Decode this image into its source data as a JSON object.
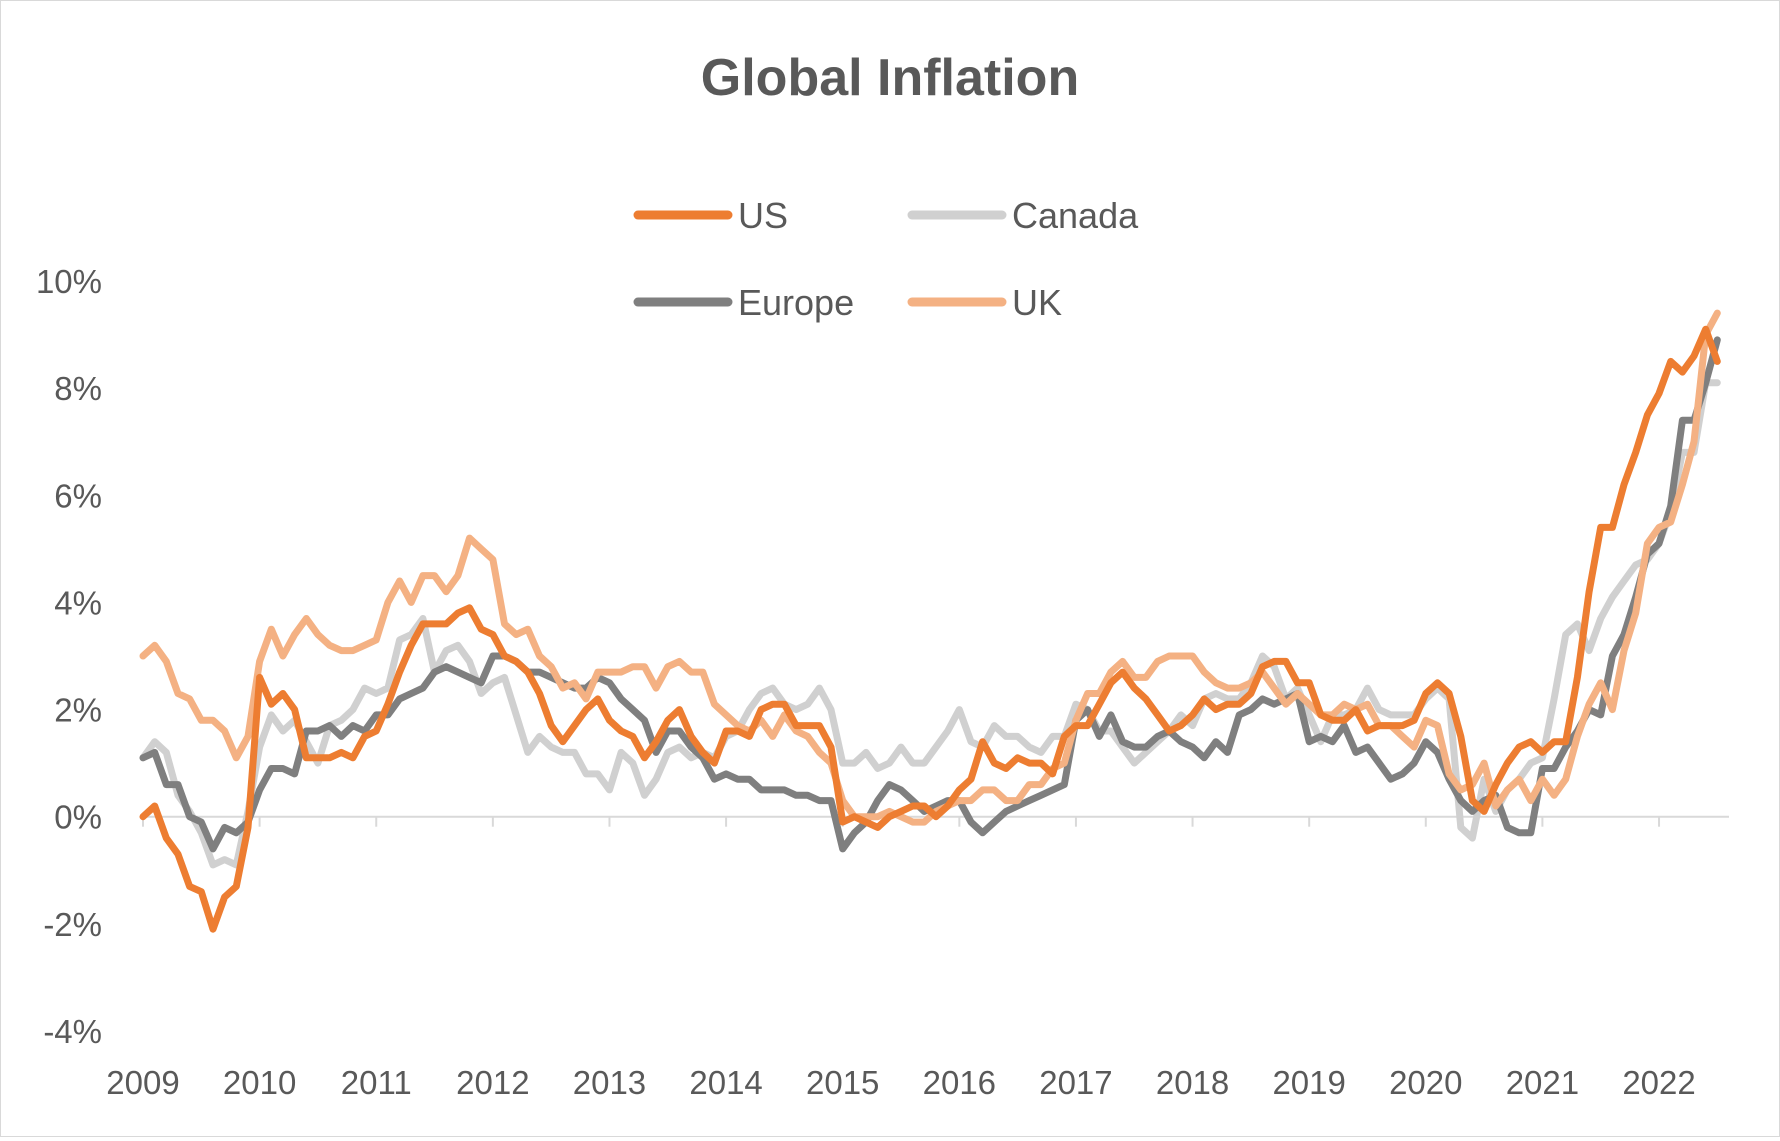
{
  "chart_data": {
    "type": "line",
    "title": "Global Inflation",
    "xlabel": "",
    "ylabel": "",
    "x_ticks": [
      "2009",
      "2010",
      "2011",
      "2012",
      "2013",
      "2014",
      "2015",
      "2016",
      "2017",
      "2018",
      "2019",
      "2020",
      "2021",
      "2022"
    ],
    "xlim": [
      2009.0,
      2022.6
    ],
    "ylim": [
      -4,
      10
    ],
    "y_ticks": [
      -4,
      -2,
      0,
      2,
      4,
      6,
      8,
      10
    ],
    "y_tick_labels": [
      "-4%",
      "-2%",
      "0%",
      "2%",
      "4%",
      "6%",
      "8%",
      "10%"
    ],
    "grid": false,
    "legend_position": "top-center",
    "series": [
      {
        "name": "Canada",
        "color": "#d0d0d0",
        "x": [
          2009.0,
          2009.1,
          2009.2,
          2009.3,
          2009.4,
          2009.5,
          2009.6,
          2009.7,
          2009.8,
          2009.9,
          2010.0,
          2010.1,
          2010.2,
          2010.3,
          2010.4,
          2010.5,
          2010.6,
          2010.7,
          2010.8,
          2010.9,
          2011.0,
          2011.1,
          2011.2,
          2011.3,
          2011.4,
          2011.5,
          2011.6,
          2011.7,
          2011.8,
          2011.9,
          2012.0,
          2012.1,
          2012.2,
          2012.3,
          2012.4,
          2012.5,
          2012.6,
          2012.7,
          2012.8,
          2012.9,
          2013.0,
          2013.1,
          2013.2,
          2013.3,
          2013.4,
          2013.5,
          2013.6,
          2013.7,
          2013.8,
          2013.9,
          2014.0,
          2014.1,
          2014.2,
          2014.3,
          2014.4,
          2014.5,
          2014.6,
          2014.7,
          2014.8,
          2014.9,
          2015.0,
          2015.1,
          2015.2,
          2015.3,
          2015.4,
          2015.5,
          2015.6,
          2015.7,
          2015.8,
          2015.9,
          2016.0,
          2016.1,
          2016.2,
          2016.3,
          2016.4,
          2016.5,
          2016.6,
          2016.7,
          2016.8,
          2016.9,
          2017.0,
          2017.1,
          2017.2,
          2017.3,
          2017.4,
          2017.5,
          2017.6,
          2017.7,
          2017.8,
          2017.9,
          2018.0,
          2018.1,
          2018.2,
          2018.3,
          2018.4,
          2018.5,
          2018.6,
          2018.7,
          2018.8,
          2018.9,
          2019.0,
          2019.1,
          2019.2,
          2019.3,
          2019.4,
          2019.5,
          2019.6,
          2019.7,
          2019.8,
          2019.9,
          2020.0,
          2020.1,
          2020.2,
          2020.3,
          2020.4,
          2020.5,
          2020.6,
          2020.7,
          2020.8,
          2020.9,
          2021.0,
          2021.1,
          2021.2,
          2021.3,
          2021.4,
          2021.5,
          2021.6,
          2021.7,
          2021.8,
          2021.9,
          2022.0,
          2022.1,
          2022.2,
          2022.3,
          2022.4,
          2022.5
        ],
        "values": [
          1.1,
          1.4,
          1.2,
          0.4,
          0.1,
          -0.3,
          -0.9,
          -0.8,
          -0.9,
          0.1,
          1.3,
          1.9,
          1.6,
          1.8,
          1.4,
          1.0,
          1.7,
          1.8,
          2.0,
          2.4,
          2.3,
          2.4,
          3.3,
          3.4,
          3.7,
          2.7,
          3.1,
          3.2,
          2.9,
          2.3,
          2.5,
          2.6,
          1.9,
          1.2,
          1.5,
          1.3,
          1.2,
          1.2,
          0.8,
          0.8,
          0.5,
          1.2,
          1.0,
          0.4,
          0.7,
          1.2,
          1.3,
          1.1,
          1.2,
          1.1,
          1.5,
          1.6,
          2.0,
          2.3,
          2.4,
          2.1,
          2.0,
          2.1,
          2.4,
          2.0,
          1.0,
          1.0,
          1.2,
          0.9,
          1.0,
          1.3,
          1.0,
          1.0,
          1.3,
          1.6,
          2.0,
          1.4,
          1.3,
          1.7,
          1.5,
          1.5,
          1.3,
          1.2,
          1.5,
          1.5,
          2.1,
          2.0,
          1.6,
          1.6,
          1.3,
          1.0,
          1.2,
          1.4,
          1.6,
          1.9,
          1.7,
          2.2,
          2.3,
          2.2,
          2.2,
          2.5,
          3.0,
          2.8,
          2.2,
          2.4,
          1.9,
          1.4,
          1.9,
          1.9,
          2.0,
          2.4,
          2.0,
          1.9,
          1.9,
          1.9,
          2.2,
          2.4,
          2.2,
          -0.2,
          -0.4,
          0.7,
          0.1,
          0.5,
          0.7,
          1.0,
          1.1,
          2.2,
          3.4,
          3.6,
          3.1,
          3.7,
          4.1,
          4.4,
          4.7,
          4.8,
          5.1,
          5.7,
          6.8,
          6.8,
          8.1,
          8.1
        ]
      },
      {
        "name": "Europe",
        "color": "#7f7f7f",
        "x": [
          2009.0,
          2009.1,
          2009.2,
          2009.3,
          2009.4,
          2009.5,
          2009.6,
          2009.7,
          2009.8,
          2009.9,
          2010.0,
          2010.1,
          2010.2,
          2010.3,
          2010.4,
          2010.5,
          2010.6,
          2010.7,
          2010.8,
          2010.9,
          2011.0,
          2011.1,
          2011.2,
          2011.3,
          2011.4,
          2011.5,
          2011.6,
          2011.7,
          2011.8,
          2011.9,
          2012.0,
          2012.1,
          2012.2,
          2012.3,
          2012.4,
          2012.5,
          2012.6,
          2012.7,
          2012.8,
          2012.9,
          2013.0,
          2013.1,
          2013.2,
          2013.3,
          2013.4,
          2013.5,
          2013.6,
          2013.7,
          2013.8,
          2013.9,
          2014.0,
          2014.1,
          2014.2,
          2014.3,
          2014.4,
          2014.5,
          2014.6,
          2014.7,
          2014.8,
          2014.9,
          2015.0,
          2015.1,
          2015.2,
          2015.3,
          2015.4,
          2015.5,
          2015.6,
          2015.7,
          2015.8,
          2015.9,
          2016.0,
          2016.1,
          2016.2,
          2016.3,
          2016.4,
          2016.5,
          2016.6,
          2016.7,
          2016.8,
          2016.9,
          2017.0,
          2017.1,
          2017.2,
          2017.3,
          2017.4,
          2017.5,
          2017.6,
          2017.7,
          2017.8,
          2017.9,
          2018.0,
          2018.1,
          2018.2,
          2018.3,
          2018.4,
          2018.5,
          2018.6,
          2018.7,
          2018.8,
          2018.9,
          2019.0,
          2019.1,
          2019.2,
          2019.3,
          2019.4,
          2019.5,
          2019.6,
          2019.7,
          2019.8,
          2019.9,
          2020.0,
          2020.1,
          2020.2,
          2020.3,
          2020.4,
          2020.5,
          2020.6,
          2020.7,
          2020.8,
          2020.9,
          2021.0,
          2021.1,
          2021.2,
          2021.3,
          2021.4,
          2021.5,
          2021.6,
          2021.7,
          2021.8,
          2021.9,
          2022.0,
          2022.1,
          2022.2,
          2022.3,
          2022.4,
          2022.5
        ],
        "values": [
          1.1,
          1.2,
          0.6,
          0.6,
          0.0,
          -0.1,
          -0.6,
          -0.2,
          -0.3,
          -0.1,
          0.5,
          0.9,
          0.9,
          0.8,
          1.6,
          1.6,
          1.7,
          1.5,
          1.7,
          1.6,
          1.9,
          1.9,
          2.2,
          2.3,
          2.4,
          2.7,
          2.8,
          2.7,
          2.6,
          2.5,
          3.0,
          3.0,
          2.9,
          2.7,
          2.7,
          2.6,
          2.5,
          2.4,
          2.4,
          2.6,
          2.5,
          2.2,
          2.0,
          1.8,
          1.2,
          1.6,
          1.6,
          1.3,
          1.1,
          0.7,
          0.8,
          0.7,
          0.7,
          0.5,
          0.5,
          0.5,
          0.4,
          0.4,
          0.3,
          0.3,
          -0.6,
          -0.3,
          -0.1,
          0.3,
          0.6,
          0.5,
          0.3,
          0.1,
          0.2,
          0.3,
          0.3,
          -0.1,
          -0.3,
          -0.1,
          0.1,
          0.2,
          0.3,
          0.4,
          0.5,
          0.6,
          1.8,
          2.0,
          1.5,
          1.9,
          1.4,
          1.3,
          1.3,
          1.5,
          1.6,
          1.4,
          1.3,
          1.1,
          1.4,
          1.2,
          1.9,
          2.0,
          2.2,
          2.1,
          2.2,
          2.3,
          1.4,
          1.5,
          1.4,
          1.7,
          1.2,
          1.3,
          1.0,
          0.7,
          0.8,
          1.0,
          1.4,
          1.2,
          0.7,
          0.3,
          0.1,
          0.3,
          0.4,
          -0.2,
          -0.3,
          -0.3,
          0.9,
          0.9,
          1.3,
          1.6,
          2.0,
          1.9,
          3.0,
          3.4,
          4.1,
          4.9,
          5.1,
          5.8,
          7.4,
          7.4,
          8.1,
          8.9
        ]
      },
      {
        "name": "UK",
        "color": "#f4b183",
        "x": [
          2009.0,
          2009.1,
          2009.2,
          2009.3,
          2009.4,
          2009.5,
          2009.6,
          2009.7,
          2009.8,
          2009.9,
          2010.0,
          2010.1,
          2010.2,
          2010.3,
          2010.4,
          2010.5,
          2010.6,
          2010.7,
          2010.8,
          2010.9,
          2011.0,
          2011.1,
          2011.2,
          2011.3,
          2011.4,
          2011.5,
          2011.6,
          2011.7,
          2011.8,
          2011.9,
          2012.0,
          2012.1,
          2012.2,
          2012.3,
          2012.4,
          2012.5,
          2012.6,
          2012.7,
          2012.8,
          2012.9,
          2013.0,
          2013.1,
          2013.2,
          2013.3,
          2013.4,
          2013.5,
          2013.6,
          2013.7,
          2013.8,
          2013.9,
          2014.0,
          2014.1,
          2014.2,
          2014.3,
          2014.4,
          2014.5,
          2014.6,
          2014.7,
          2014.8,
          2014.9,
          2015.0,
          2015.1,
          2015.2,
          2015.3,
          2015.4,
          2015.5,
          2015.6,
          2015.7,
          2015.8,
          2015.9,
          2016.0,
          2016.1,
          2016.2,
          2016.3,
          2016.4,
          2016.5,
          2016.6,
          2016.7,
          2016.8,
          2016.9,
          2017.0,
          2017.1,
          2017.2,
          2017.3,
          2017.4,
          2017.5,
          2017.6,
          2017.7,
          2017.8,
          2017.9,
          2018.0,
          2018.1,
          2018.2,
          2018.3,
          2018.4,
          2018.5,
          2018.6,
          2018.7,
          2018.8,
          2018.9,
          2019.0,
          2019.1,
          2019.2,
          2019.3,
          2019.4,
          2019.5,
          2019.6,
          2019.7,
          2019.8,
          2019.9,
          2020.0,
          2020.1,
          2020.2,
          2020.3,
          2020.4,
          2020.5,
          2020.6,
          2020.7,
          2020.8,
          2020.9,
          2021.0,
          2021.1,
          2021.2,
          2021.3,
          2021.4,
          2021.5,
          2021.6,
          2021.7,
          2021.8,
          2021.9,
          2022.0,
          2022.1,
          2022.2,
          2022.3,
          2022.4,
          2022.5
        ],
        "values": [
          3.0,
          3.2,
          2.9,
          2.3,
          2.2,
          1.8,
          1.8,
          1.6,
          1.1,
          1.5,
          2.9,
          3.5,
          3.0,
          3.4,
          3.7,
          3.4,
          3.2,
          3.1,
          3.1,
          3.2,
          3.3,
          4.0,
          4.4,
          4.0,
          4.5,
          4.5,
          4.2,
          4.5,
          5.2,
          5.0,
          4.8,
          3.6,
          3.4,
          3.5,
          3.0,
          2.8,
          2.4,
          2.5,
          2.2,
          2.7,
          2.7,
          2.7,
          2.8,
          2.8,
          2.4,
          2.8,
          2.9,
          2.7,
          2.7,
          2.1,
          1.9,
          1.7,
          1.6,
          1.8,
          1.5,
          1.9,
          1.6,
          1.5,
          1.2,
          1.0,
          0.3,
          0.0,
          0.0,
          0.0,
          0.1,
          0.0,
          -0.1,
          -0.1,
          0.1,
          0.2,
          0.3,
          0.3,
          0.5,
          0.5,
          0.3,
          0.3,
          0.6,
          0.6,
          0.9,
          1.0,
          1.8,
          2.3,
          2.3,
          2.7,
          2.9,
          2.6,
          2.6,
          2.9,
          3.0,
          3.0,
          3.0,
          2.7,
          2.5,
          2.4,
          2.4,
          2.5,
          2.7,
          2.4,
          2.1,
          2.3,
          2.1,
          1.9,
          1.9,
          2.1,
          2.0,
          2.1,
          1.7,
          1.7,
          1.5,
          1.3,
          1.8,
          1.7,
          0.8,
          0.5,
          0.6,
          1.0,
          0.2,
          0.5,
          0.7,
          0.3,
          0.7,
          0.4,
          0.7,
          1.5,
          2.1,
          2.5,
          2.0,
          3.1,
          3.8,
          5.1,
          5.4,
          5.5,
          6.2,
          7.0,
          9.0,
          9.4
        ]
      },
      {
        "name": "US",
        "color": "#ed7d31",
        "x": [
          2009.0,
          2009.1,
          2009.2,
          2009.3,
          2009.4,
          2009.5,
          2009.6,
          2009.7,
          2009.8,
          2009.9,
          2010.0,
          2010.1,
          2010.2,
          2010.3,
          2010.4,
          2010.5,
          2010.6,
          2010.7,
          2010.8,
          2010.9,
          2011.0,
          2011.1,
          2011.2,
          2011.3,
          2011.4,
          2011.5,
          2011.6,
          2011.7,
          2011.8,
          2011.9,
          2012.0,
          2012.1,
          2012.2,
          2012.3,
          2012.4,
          2012.5,
          2012.6,
          2012.7,
          2012.8,
          2012.9,
          2013.0,
          2013.1,
          2013.2,
          2013.3,
          2013.4,
          2013.5,
          2013.6,
          2013.7,
          2013.8,
          2013.9,
          2014.0,
          2014.1,
          2014.2,
          2014.3,
          2014.4,
          2014.5,
          2014.6,
          2014.7,
          2014.8,
          2014.9,
          2015.0,
          2015.1,
          2015.2,
          2015.3,
          2015.4,
          2015.5,
          2015.6,
          2015.7,
          2015.8,
          2015.9,
          2016.0,
          2016.1,
          2016.2,
          2016.3,
          2016.4,
          2016.5,
          2016.6,
          2016.7,
          2016.8,
          2016.9,
          2017.0,
          2017.1,
          2017.2,
          2017.3,
          2017.4,
          2017.5,
          2017.6,
          2017.7,
          2017.8,
          2017.9,
          2018.0,
          2018.1,
          2018.2,
          2018.3,
          2018.4,
          2018.5,
          2018.6,
          2018.7,
          2018.8,
          2018.9,
          2019.0,
          2019.1,
          2019.2,
          2019.3,
          2019.4,
          2019.5,
          2019.6,
          2019.7,
          2019.8,
          2019.9,
          2020.0,
          2020.1,
          2020.2,
          2020.3,
          2020.4,
          2020.5,
          2020.6,
          2020.7,
          2020.8,
          2020.9,
          2021.0,
          2021.1,
          2021.2,
          2021.3,
          2021.4,
          2021.5,
          2021.6,
          2021.7,
          2021.8,
          2021.9,
          2022.0,
          2022.1,
          2022.2,
          2022.3,
          2022.4,
          2022.5
        ],
        "values": [
          0.0,
          0.2,
          -0.4,
          -0.7,
          -1.3,
          -1.4,
          -2.1,
          -1.5,
          -1.3,
          -0.2,
          2.6,
          2.1,
          2.3,
          2.0,
          1.1,
          1.1,
          1.1,
          1.2,
          1.1,
          1.5,
          1.6,
          2.1,
          2.7,
          3.2,
          3.6,
          3.6,
          3.6,
          3.8,
          3.9,
          3.5,
          3.4,
          3.0,
          2.9,
          2.7,
          2.3,
          1.7,
          1.4,
          1.7,
          2.0,
          2.2,
          1.8,
          1.6,
          1.5,
          1.1,
          1.4,
          1.8,
          2.0,
          1.5,
          1.2,
          1.0,
          1.6,
          1.6,
          1.5,
          2.0,
          2.1,
          2.1,
          1.7,
          1.7,
          1.7,
          1.3,
          -0.1,
          0.0,
          -0.1,
          -0.2,
          0.0,
          0.1,
          0.2,
          0.2,
          0.0,
          0.2,
          0.5,
          0.7,
          1.4,
          1.0,
          0.9,
          1.1,
          1.0,
          1.0,
          0.8,
          1.5,
          1.7,
          1.7,
          2.1,
          2.5,
          2.7,
          2.4,
          2.2,
          1.9,
          1.6,
          1.7,
          1.9,
          2.2,
          2.0,
          2.1,
          2.1,
          2.3,
          2.8,
          2.9,
          2.9,
          2.5,
          2.5,
          1.9,
          1.8,
          1.8,
          2.0,
          1.6,
          1.7,
          1.7,
          1.7,
          1.8,
          2.3,
          2.5,
          2.3,
          1.5,
          0.3,
          0.1,
          0.6,
          1.0,
          1.3,
          1.4,
          1.2,
          1.4,
          1.4,
          2.6,
          4.2,
          5.4,
          5.4,
          6.2,
          6.8,
          7.5,
          7.9,
          8.5,
          8.3,
          8.6,
          9.1,
          8.5
        ]
      }
    ]
  },
  "legend": [
    {
      "label": "US",
      "color": "#ed7d31"
    },
    {
      "label": "Canada",
      "color": "#d0d0d0"
    },
    {
      "label": "Europe",
      "color": "#7f7f7f"
    },
    {
      "label": "UK",
      "color": "#f4b183"
    }
  ],
  "axis_color": "#d9d9d9"
}
